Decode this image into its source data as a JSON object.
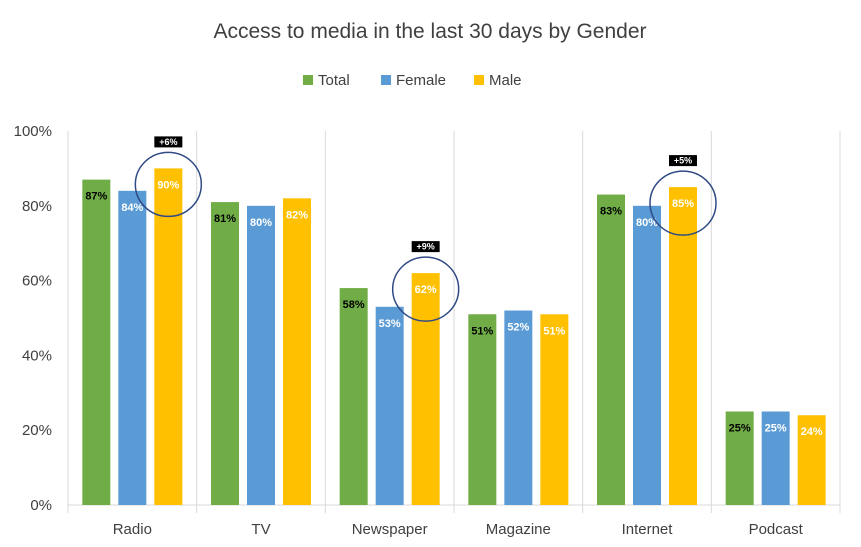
{
  "chart_data": {
    "type": "bar",
    "title": "Access to media in the last 30 days by Gender",
    "xlabel": "",
    "ylabel": "",
    "ylim": [
      0,
      100
    ],
    "yticks": [
      "0%",
      "20%",
      "40%",
      "60%",
      "80%",
      "100%"
    ],
    "legend_position": "top",
    "categories": [
      "Radio",
      "TV",
      "Newspaper",
      "Magazine",
      "Internet",
      "Podcast"
    ],
    "series": [
      {
        "name": "Total",
        "color": "#70AD47",
        "label_color": "#000000",
        "values": [
          87,
          81,
          58,
          51,
          83,
          25
        ],
        "labels": [
          "87%",
          "81%",
          "58%",
          "51%",
          "83%",
          "25%"
        ]
      },
      {
        "name": "Female",
        "color": "#5B9BD5",
        "label_color": "#ffffff",
        "values": [
          84,
          80,
          53,
          52,
          80,
          25
        ],
        "labels": [
          "84%",
          "80%",
          "53%",
          "52%",
          "80%",
          "25%"
        ]
      },
      {
        "name": "Male",
        "color": "#FFC000",
        "label_color": "#ffffff",
        "values": [
          90,
          82,
          62,
          51,
          85,
          24
        ],
        "labels": [
          "90%",
          "82%",
          "62%",
          "51%",
          "85%",
          "24%"
        ]
      }
    ],
    "annotations": [
      {
        "category": "Radio",
        "series": "Male",
        "text": "+6%"
      },
      {
        "category": "Newspaper",
        "series": "Male",
        "text": "+9%"
      },
      {
        "category": "Internet",
        "series": "Male",
        "text": "+5%"
      }
    ],
    "colors": {
      "axis": "#D9D9D9",
      "text": "#404040",
      "circle": "#2F4A85",
      "callout_bg": "#000000"
    },
    "grid": false
  }
}
